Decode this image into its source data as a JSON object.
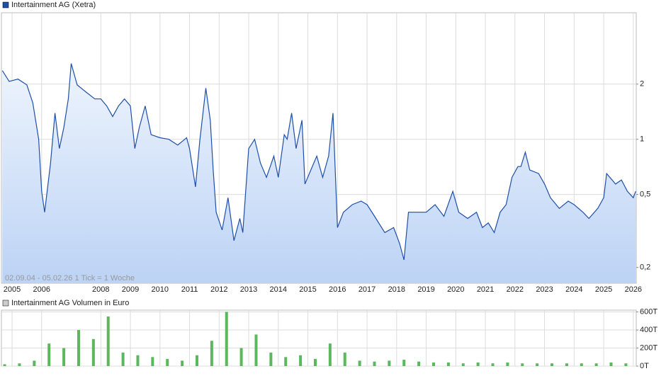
{
  "chart_data": [
    {
      "type": "line",
      "title": "Intertainment AG (Xetra)",
      "subtitle": "02.09.04 - 05.02.26   1 Tick = 1 Woche",
      "color": "#1f4fa8",
      "log_scale": true,
      "grid": true,
      "x": [
        2004.67,
        2004.9,
        2005.2,
        2005.5,
        2005.7,
        2005.9,
        2006.0,
        2006.1,
        2006.3,
        2006.45,
        2006.6,
        2006.75,
        2006.9,
        2007.0,
        2007.2,
        2007.5,
        2007.8,
        2008.0,
        2008.2,
        2008.4,
        2008.6,
        2008.8,
        2009.0,
        2009.15,
        2009.3,
        2009.5,
        2009.7,
        2010.0,
        2010.3,
        2010.6,
        2010.9,
        2011.0,
        2011.2,
        2011.35,
        2011.55,
        2011.7,
        2011.8,
        2011.9,
        2012.1,
        2012.3,
        2012.5,
        2012.7,
        2012.8,
        2013.0,
        2013.2,
        2013.4,
        2013.6,
        2013.85,
        2014.0,
        2014.2,
        2014.3,
        2014.45,
        2014.6,
        2014.8,
        2014.9,
        2015.1,
        2015.3,
        2015.5,
        2015.7,
        2015.85,
        2016.0,
        2016.2,
        2016.5,
        2016.8,
        2017.0,
        2017.3,
        2017.6,
        2017.9,
        2018.1,
        2018.25,
        2018.4,
        2018.7,
        2019.0,
        2019.3,
        2019.6,
        2019.9,
        2020.1,
        2020.4,
        2020.7,
        2020.9,
        2021.1,
        2021.3,
        2021.5,
        2021.7,
        2021.9,
        2022.1,
        2022.2,
        2022.35,
        2022.5,
        2022.8,
        2023.0,
        2023.2,
        2023.5,
        2023.8,
        2024.0,
        2024.3,
        2024.5,
        2024.8,
        2025.0,
        2025.1,
        2025.4,
        2025.6,
        2025.8,
        2026.0,
        2026.08
      ],
      "values": [
        2.37,
        2.07,
        2.13,
        1.98,
        1.58,
        1.0,
        0.52,
        0.4,
        0.74,
        1.39,
        0.89,
        1.16,
        1.66,
        2.59,
        1.98,
        1.81,
        1.66,
        1.66,
        1.52,
        1.33,
        1.52,
        1.66,
        1.52,
        0.89,
        1.16,
        1.52,
        1.06,
        1.02,
        1.0,
        0.93,
        1.02,
        0.89,
        0.55,
        1.0,
        1.9,
        1.27,
        0.68,
        0.4,
        0.32,
        0.48,
        0.28,
        0.37,
        0.31,
        0.89,
        1.0,
        0.74,
        0.62,
        0.81,
        0.62,
        1.06,
        1.0,
        1.39,
        0.89,
        1.27,
        0.57,
        0.68,
        0.81,
        0.62,
        0.81,
        1.39,
        0.33,
        0.4,
        0.44,
        0.46,
        0.44,
        0.37,
        0.31,
        0.33,
        0.27,
        0.22,
        0.4,
        0.4,
        0.4,
        0.44,
        0.38,
        0.52,
        0.4,
        0.37,
        0.4,
        0.33,
        0.35,
        0.31,
        0.4,
        0.44,
        0.62,
        0.71,
        0.71,
        0.85,
        0.68,
        0.65,
        0.57,
        0.48,
        0.42,
        0.46,
        0.44,
        0.4,
        0.37,
        0.42,
        0.48,
        0.65,
        0.57,
        0.6,
        0.52,
        0.48,
        0.52
      ],
      "xlim": [
        2004.64,
        2026.1
      ],
      "xticks": [
        2005,
        2006,
        2008,
        2009,
        2010,
        2011,
        2012,
        2013,
        2014,
        2015,
        2016,
        2017,
        2018,
        2019,
        2020,
        2021,
        2022,
        2023,
        2024,
        2025,
        2026
      ],
      "ylim": [
        0.164,
        4.9
      ],
      "yticks": [
        {
          "value": 0.2,
          "label": "0,2"
        },
        {
          "value": 0.5,
          "label": "0,5"
        },
        1,
        2
      ]
    },
    {
      "type": "bar",
      "title": "Intertainment AG Volumen in Euro",
      "color": "#5cb85c",
      "grid": true,
      "x": [
        2004.75,
        2005.25,
        2005.75,
        2006.25,
        2006.75,
        2007.25,
        2007.75,
        2008.25,
        2008.75,
        2009.25,
        2009.75,
        2010.25,
        2010.75,
        2011.25,
        2011.75,
        2012.25,
        2012.75,
        2013.25,
        2013.75,
        2014.25,
        2014.75,
        2015.25,
        2015.75,
        2016.25,
        2016.75,
        2017.25,
        2017.75,
        2018.25,
        2018.75,
        2019.25,
        2019.75,
        2020.25,
        2020.75,
        2021.25,
        2021.75,
        2022.25,
        2022.75,
        2023.25,
        2023.75,
        2024.25,
        2024.75,
        2025.25,
        2025.75
      ],
      "values": [
        20000,
        30000,
        60000,
        250000,
        200000,
        400000,
        300000,
        550000,
        150000,
        120000,
        100000,
        80000,
        60000,
        120000,
        280000,
        600000,
        200000,
        350000,
        150000,
        100000,
        120000,
        80000,
        250000,
        150000,
        60000,
        50000,
        60000,
        70000,
        50000,
        40000,
        40000,
        30000,
        40000,
        30000,
        40000,
        30000,
        30000,
        30000,
        30000,
        30000,
        30000,
        40000,
        30000
      ],
      "xlim": [
        2004.64,
        2026.1
      ],
      "ylim": [
        0,
        620000
      ],
      "yticks": [
        {
          "value": 0,
          "label": "0T"
        },
        {
          "value": 200000,
          "label": "200T"
        },
        {
          "value": 400000,
          "label": "400T"
        },
        {
          "value": 600000,
          "label": "600T"
        }
      ]
    }
  ]
}
